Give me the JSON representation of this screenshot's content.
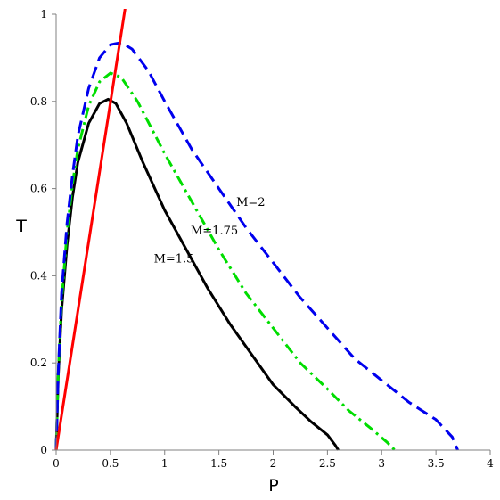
{
  "chart_data": {
    "type": "line",
    "xlabel": "P",
    "ylabel": "T",
    "xlim": [
      0,
      4
    ],
    "ylim": [
      0,
      1
    ],
    "xticks": [
      "0",
      "0.5",
      "1",
      "1.5",
      "2",
      "2.5",
      "3",
      "3.5",
      "4"
    ],
    "yticks": [
      "0",
      "0.2",
      "0.4",
      "0.6",
      "0.8",
      "1"
    ],
    "grid": false,
    "legend": "none",
    "series": [
      {
        "color": "#000000",
        "style": "solid",
        "points": [
          [
            0,
            0
          ],
          [
            0.02,
            0.17
          ],
          [
            0.05,
            0.32
          ],
          [
            0.1,
            0.47
          ],
          [
            0.15,
            0.58
          ],
          [
            0.2,
            0.66
          ],
          [
            0.3,
            0.75
          ],
          [
            0.4,
            0.795
          ],
          [
            0.48,
            0.805
          ],
          [
            0.55,
            0.795
          ],
          [
            0.65,
            0.75
          ],
          [
            0.8,
            0.66
          ],
          [
            1.0,
            0.55
          ],
          [
            1.2,
            0.46
          ],
          [
            1.4,
            0.37
          ],
          [
            1.6,
            0.29
          ],
          [
            1.8,
            0.22
          ],
          [
            2.0,
            0.15
          ],
          [
            2.2,
            0.1
          ],
          [
            2.35,
            0.065
          ],
          [
            2.5,
            0.035
          ],
          [
            2.57,
            0.012
          ],
          [
            2.6,
            0
          ]
        ]
      },
      {
        "color": "#00dd00",
        "style": "dashdot",
        "points": [
          [
            0,
            0
          ],
          [
            0.02,
            0.18
          ],
          [
            0.05,
            0.34
          ],
          [
            0.1,
            0.5
          ],
          [
            0.15,
            0.61
          ],
          [
            0.2,
            0.69
          ],
          [
            0.3,
            0.79
          ],
          [
            0.4,
            0.845
          ],
          [
            0.5,
            0.865
          ],
          [
            0.6,
            0.855
          ],
          [
            0.75,
            0.8
          ],
          [
            1.0,
            0.68
          ],
          [
            1.25,
            0.57
          ],
          [
            1.5,
            0.46
          ],
          [
            1.75,
            0.36
          ],
          [
            2.0,
            0.28
          ],
          [
            2.25,
            0.2
          ],
          [
            2.5,
            0.14
          ],
          [
            2.7,
            0.09
          ],
          [
            2.9,
            0.05
          ],
          [
            3.05,
            0.018
          ],
          [
            3.12,
            0
          ]
        ]
      },
      {
        "color": "#0000ee",
        "style": "dashed",
        "points": [
          [
            0,
            0
          ],
          [
            0.02,
            0.18
          ],
          [
            0.05,
            0.36
          ],
          [
            0.1,
            0.52
          ],
          [
            0.15,
            0.63
          ],
          [
            0.2,
            0.72
          ],
          [
            0.3,
            0.83
          ],
          [
            0.4,
            0.9
          ],
          [
            0.5,
            0.93
          ],
          [
            0.6,
            0.935
          ],
          [
            0.7,
            0.92
          ],
          [
            0.85,
            0.87
          ],
          [
            1.0,
            0.8
          ],
          [
            1.25,
            0.69
          ],
          [
            1.5,
            0.6
          ],
          [
            1.75,
            0.51
          ],
          [
            2.0,
            0.43
          ],
          [
            2.25,
            0.35
          ],
          [
            2.5,
            0.28
          ],
          [
            2.75,
            0.21
          ],
          [
            3.0,
            0.16
          ],
          [
            3.25,
            0.11
          ],
          [
            3.5,
            0.07
          ],
          [
            3.65,
            0.03
          ],
          [
            3.7,
            0
          ]
        ]
      },
      {
        "color": "#ff0000",
        "style": "solid",
        "points": [
          [
            0,
            0
          ],
          [
            0.64,
            1.02
          ]
        ]
      }
    ],
    "annotations": [
      {
        "text": "M=1.5",
        "x": 0.9,
        "y": 0.43
      },
      {
        "text": "M=1.75",
        "x": 1.24,
        "y": 0.495
      },
      {
        "text": "M=2",
        "x": 1.66,
        "y": 0.56
      }
    ]
  }
}
